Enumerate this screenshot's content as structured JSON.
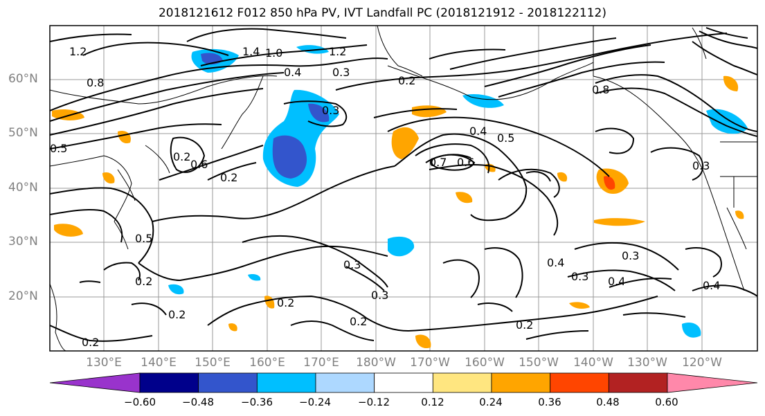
{
  "title": "2018121612 F012 850 hPa PV, IVT Landfall PC (2018121912 - 2018122112)",
  "lat_labels": [
    "60°N",
    "50°N",
    "40°N",
    "30°N",
    "20°N"
  ],
  "lon_labels": [
    "130°E",
    "140°E",
    "150°E",
    "160°E",
    "170°E",
    "180°W",
    "170°W",
    "160°W",
    "150°W",
    "140°W",
    "130°W",
    "120°W"
  ],
  "colorbar": {
    "colors": [
      "#9933cc",
      "#00008b",
      "#3355cc",
      "#00bfff",
      "#add8ff",
      "#ffffff",
      "#ffe680",
      "#ffa500",
      "#ff4500",
      "#b22222",
      "#ff88aa"
    ],
    "tick_labels": [
      "−0.60",
      "−0.48",
      "−0.36",
      "−0.24",
      "−0.12",
      "0.12",
      "0.24",
      "0.36",
      "0.48",
      "0.60"
    ]
  },
  "contour_labels": [
    "1.2",
    "1.4",
    "1.0",
    "0.4",
    "1.2",
    "0.8",
    "0.3",
    "0.2",
    "0.6",
    "0.5",
    "0.3",
    "0.2",
    "0.4",
    "0.5",
    "0.7",
    "0.6",
    "0.8",
    "0.5",
    "0.2",
    "0.3",
    "0.2",
    "0.3",
    "0.3",
    "0.4",
    "0.3",
    "0.3",
    "0.4",
    "0.4",
    "0.2",
    "0.2",
    "0.2",
    "0.2",
    "0.2"
  ],
  "chart_data": {
    "type": "map",
    "region": "North Pacific",
    "lat_range": [
      10,
      70
    ],
    "lon_range": [
      "125°E",
      "115°W"
    ],
    "fields": [
      "850 hPa PV (contours)",
      "IVT Landfall PC (shaded)"
    ]
  }
}
